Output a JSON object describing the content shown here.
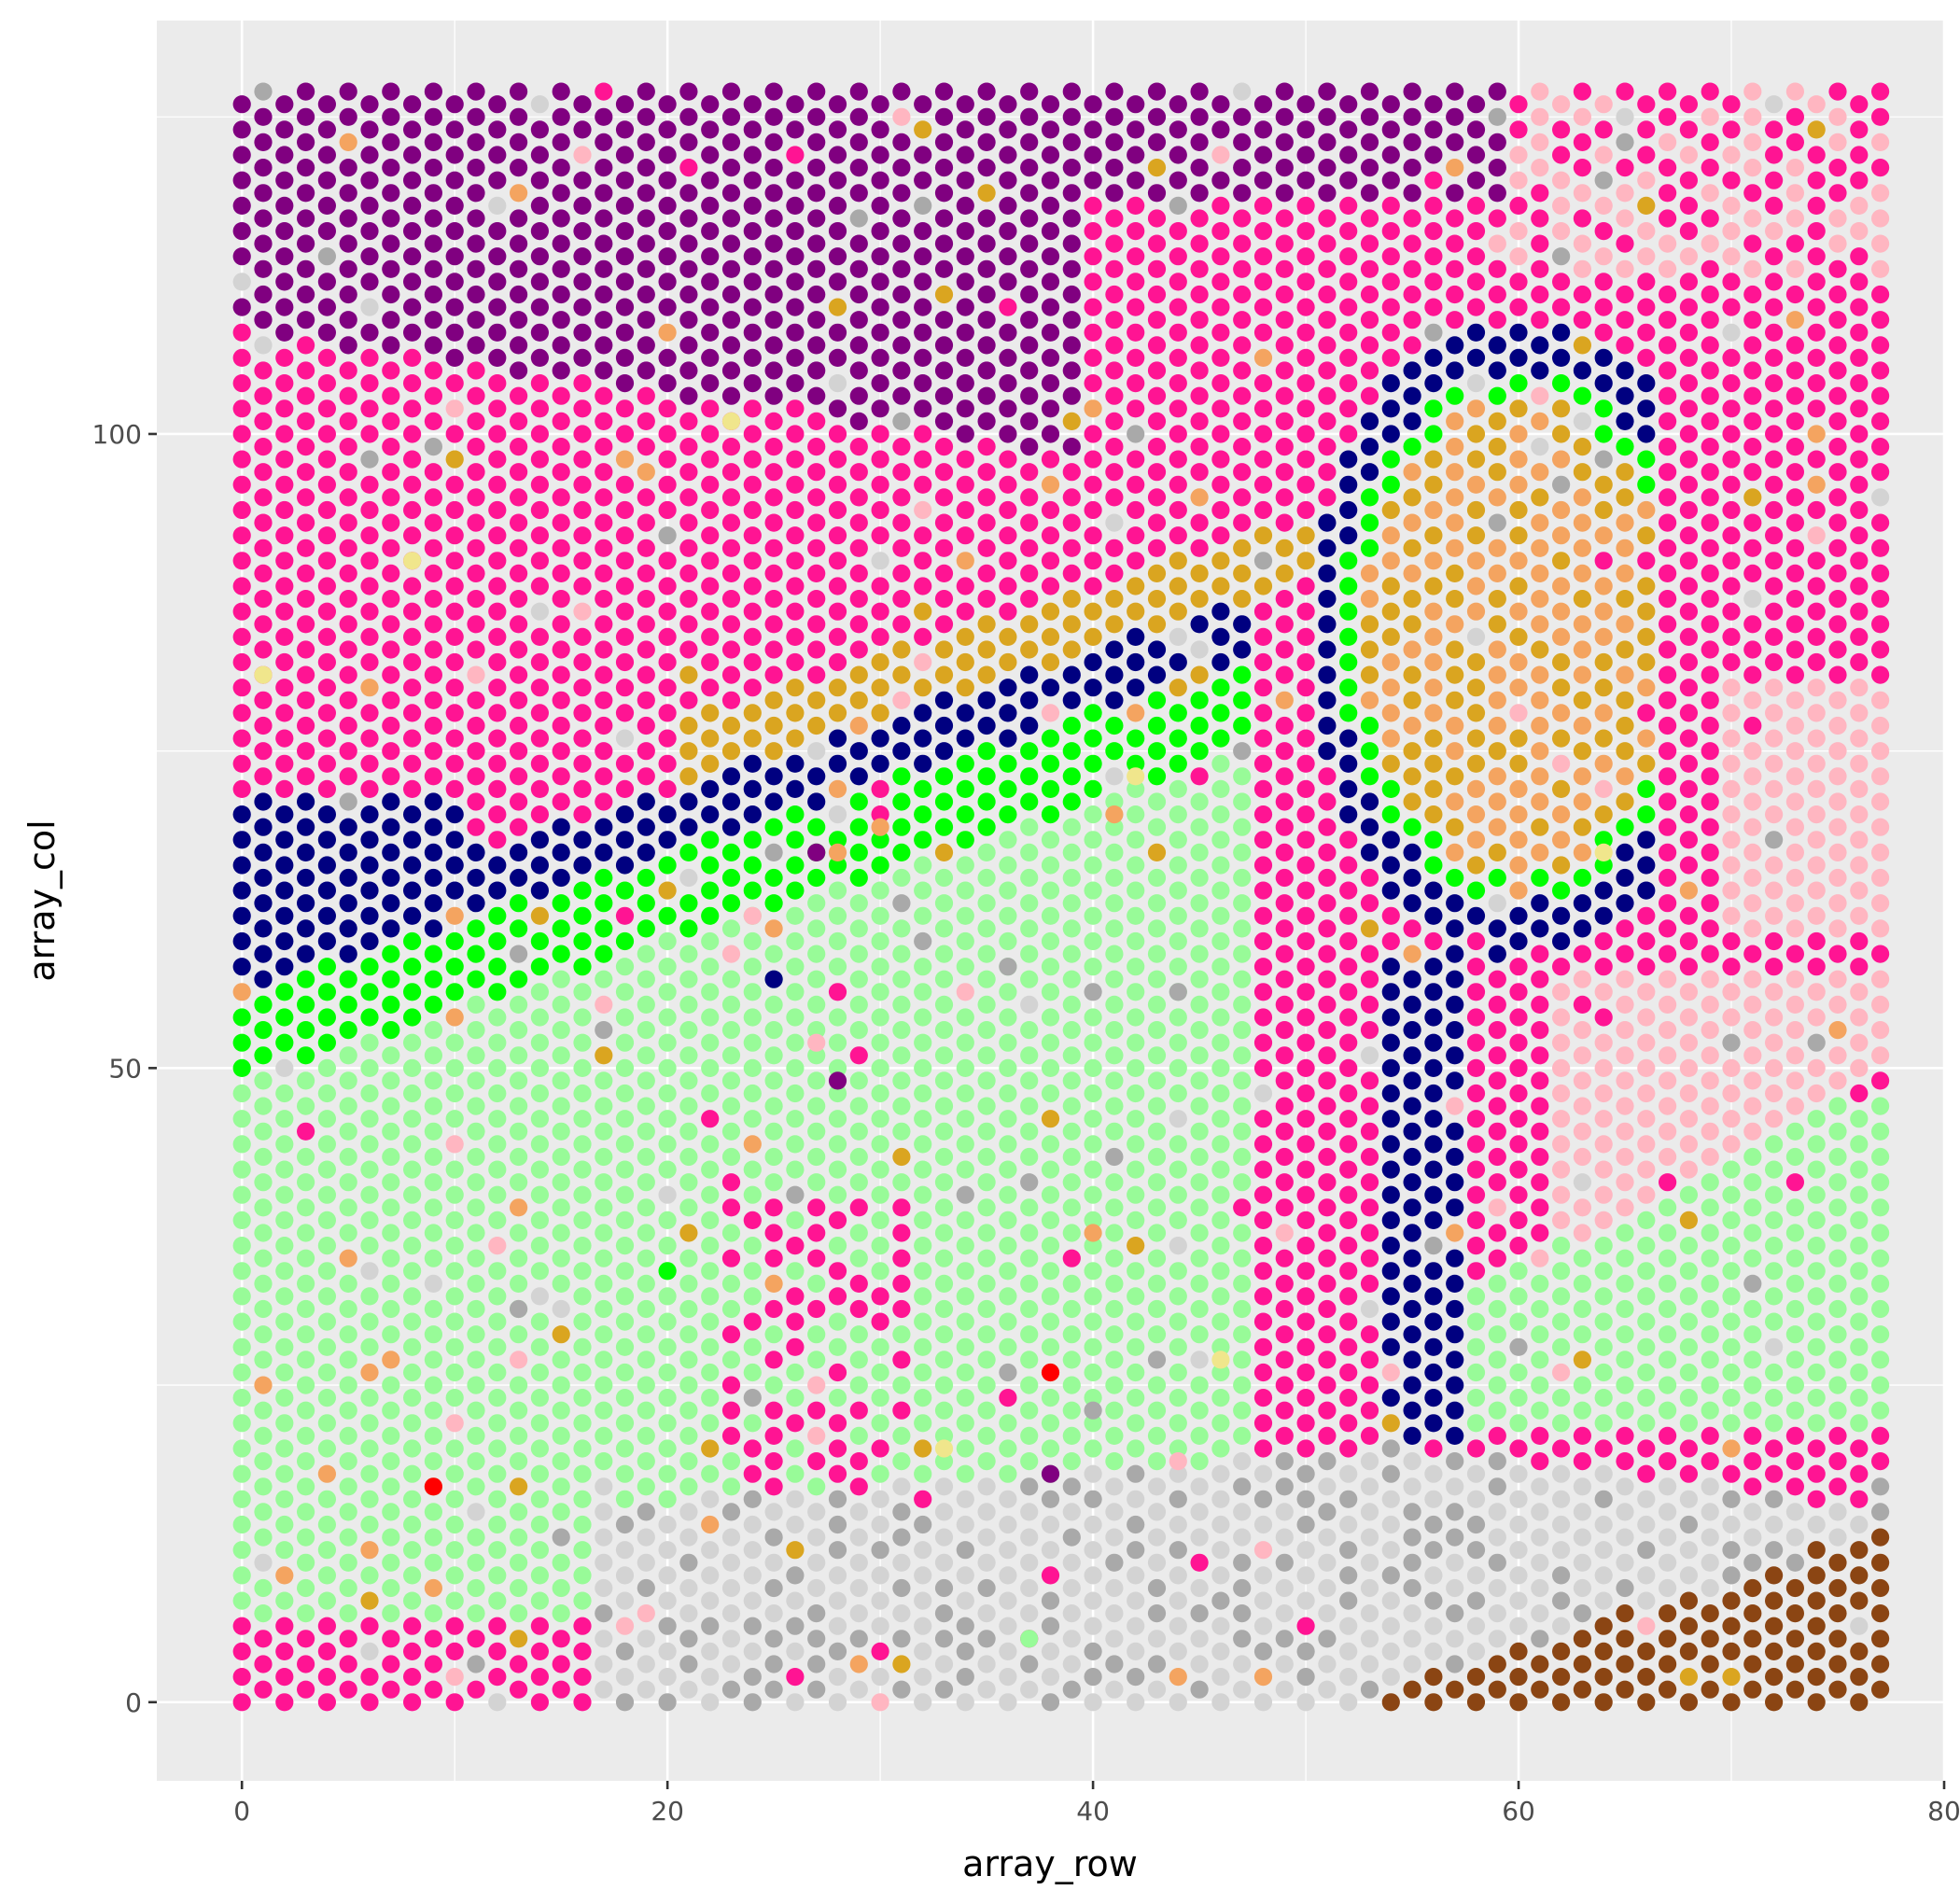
{
  "chart_data": {
    "type": "scatter",
    "title": "",
    "xlabel": "array_row",
    "ylabel": "array_col",
    "xlim": [
      -4,
      80
    ],
    "ylim": [
      -6.2,
      132.6
    ],
    "x_ticks": [
      0,
      20,
      40,
      60,
      80
    ],
    "y_ticks": [
      0,
      50,
      100
    ],
    "x_tick_labels": [
      "0",
      "20",
      "40",
      "60",
      "80"
    ],
    "y_tick_labels": [
      "0",
      "50",
      "100"
    ],
    "grid": true,
    "legend": "none",
    "grid_spots": {
      "x_min": 0,
      "x_max": 77,
      "y_min": 0,
      "y_max": 127,
      "layout": "hexagonal"
    },
    "series": [
      {
        "color": "#800080"
      },
      {
        "color": "#FF1493"
      },
      {
        "color": "#FFB6C1"
      },
      {
        "color": "#000080"
      },
      {
        "color": "#00FF00"
      },
      {
        "color": "#98FB98"
      },
      {
        "color": "#DAA520"
      },
      {
        "color": "#F4A460"
      },
      {
        "color": "#D3D3D3"
      },
      {
        "color": "#A9A9A9"
      },
      {
        "color": "#8B4513"
      },
      {
        "color": "#FF0000"
      },
      {
        "color": "#F0E68C"
      }
    ],
    "points": [
      {
        "x": 9,
        "y": 17,
        "color": "#FF0000"
      },
      {
        "x": 38,
        "y": 26,
        "color": "#FF0000"
      },
      {
        "x": 27,
        "y": 67,
        "color": "#800080"
      },
      {
        "x": 38,
        "y": 18,
        "color": "#800080"
      },
      {
        "x": 28,
        "y": 49,
        "color": "#800080"
      },
      {
        "x": 25,
        "y": 57,
        "color": "#000080"
      },
      {
        "x": 55,
        "y": 37,
        "color": "#000080"
      },
      {
        "x": 20,
        "y": 34,
        "color": "#00FF00"
      },
      {
        "x": 37,
        "y": 5,
        "color": "#98FB98"
      },
      {
        "x": 36,
        "y": 58,
        "color": "#A9A9A9"
      },
      {
        "x": 40,
        "y": 23,
        "color": "#A9A9A9"
      },
      {
        "x": 44,
        "y": 56,
        "color": "#A9A9A9"
      },
      {
        "x": 13,
        "y": 31,
        "color": "#A9A9A9"
      },
      {
        "x": 30,
        "y": 69,
        "color": "#F4A460"
      },
      {
        "x": 28,
        "y": 67,
        "color": "#F4A460"
      },
      {
        "x": 41,
        "y": 70,
        "color": "#F4A460"
      },
      {
        "x": 40,
        "y": 37,
        "color": "#F4A460"
      },
      {
        "x": 24,
        "y": 62,
        "color": "#FFB6C1"
      },
      {
        "x": 27,
        "y": 52,
        "color": "#FFB6C1"
      },
      {
        "x": 44,
        "y": 19,
        "color": "#FFB6C1"
      },
      {
        "x": 33,
        "y": 20,
        "color": "#F0E68C"
      },
      {
        "x": 46,
        "y": 27,
        "color": "#F0E68C"
      },
      {
        "x": 23,
        "y": 101,
        "color": "#F0E68C"
      },
      {
        "x": 8,
        "y": 90,
        "color": "#F0E68C"
      },
      {
        "x": 1,
        "y": 81,
        "color": "#F0E68C"
      },
      {
        "x": 42,
        "y": 73,
        "color": "#F0E68C"
      },
      {
        "x": 64,
        "y": 67,
        "color": "#F0E68C"
      }
    ]
  }
}
